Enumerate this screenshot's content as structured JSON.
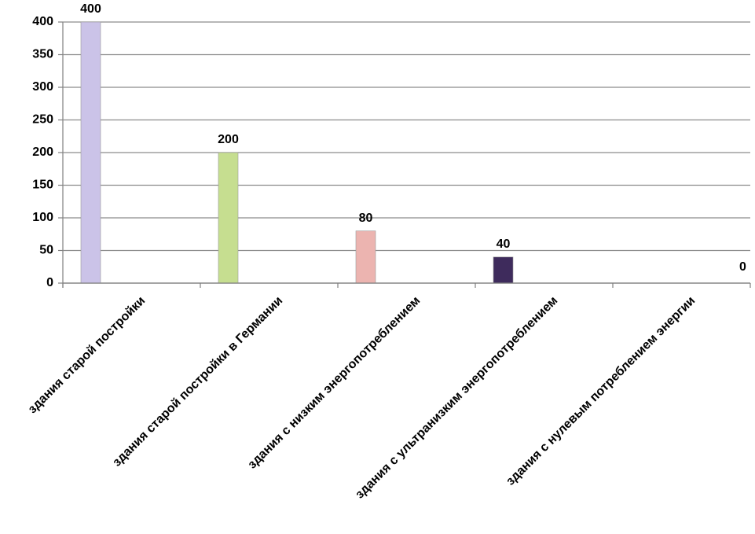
{
  "chart_data": {
    "type": "bar",
    "categories": [
      "здания старой постройки",
      "здания старой постройки в Германии",
      "здания с низким энергопотреблением",
      "здания с ультранизким энергопотреблением",
      "здания с нулевым потреблением энергии"
    ],
    "values": [
      400,
      200,
      80,
      40,
      0
    ],
    "colors": [
      "#cbc3e8",
      "#c6de90",
      "#ecb4b0",
      "#3e2b5c",
      "#888888"
    ],
    "ylim": [
      0,
      400
    ],
    "yticks": [
      0,
      50,
      100,
      150,
      200,
      250,
      300,
      350,
      400
    ],
    "grid": true
  }
}
